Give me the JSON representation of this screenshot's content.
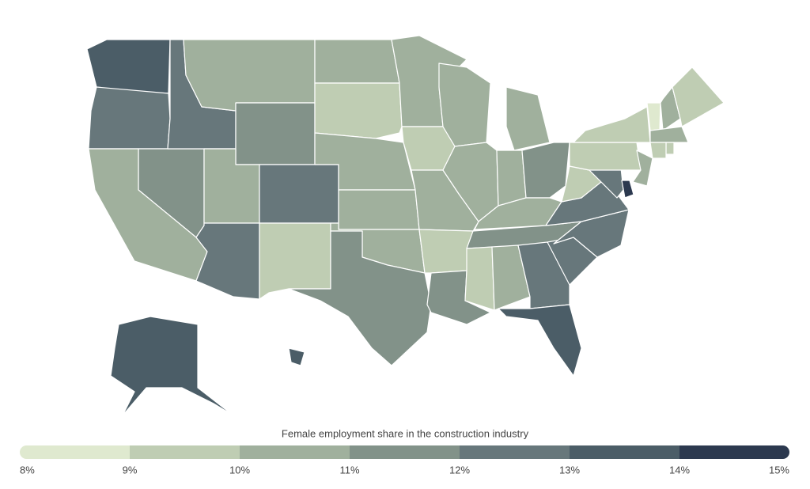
{
  "chart_data": {
    "type": "choropleth",
    "title": "Female employment share in the construction industry",
    "values": [
      13.5,
      12.5,
      11.5,
      10.5,
      12.5,
      10.5,
      11.5,
      10.5,
      12.5,
      12.5,
      9.5,
      10.5,
      9.5,
      10.5,
      10.5,
      10.5,
      11.5,
      10.5,
      9.5,
      10.5,
      9.5,
      11.5,
      10.5,
      10.5,
      10.5,
      10.5,
      11.5,
      10.5,
      11.5,
      9.5,
      10.5,
      12.5,
      13.5,
      12.5,
      12.5,
      12.5,
      9.5,
      12.5,
      14.5,
      9.5,
      10.5,
      9.5,
      8.5,
      10.5,
      9.5,
      10.5,
      9.5,
      9.5,
      13.5,
      13.5
    ],
    "legend_ticks": [
      {
        "value": 8,
        "label": "8%"
      },
      {
        "value": 9,
        "label": "9%"
      },
      {
        "value": 10,
        "label": "10%"
      },
      {
        "value": 11,
        "label": "11%"
      },
      {
        "value": 12,
        "label": "12%"
      },
      {
        "value": 13,
        "label": "13%"
      },
      {
        "value": 14,
        "label": "14%"
      },
      {
        "value": 15,
        "label": "15%"
      }
    ],
    "bin_colors": [
      "#dfe9cf",
      "#bfcdb3",
      "#a0b09d",
      "#829289",
      "#67777b",
      "#4b5d67",
      "#2c394f"
    ]
  }
}
